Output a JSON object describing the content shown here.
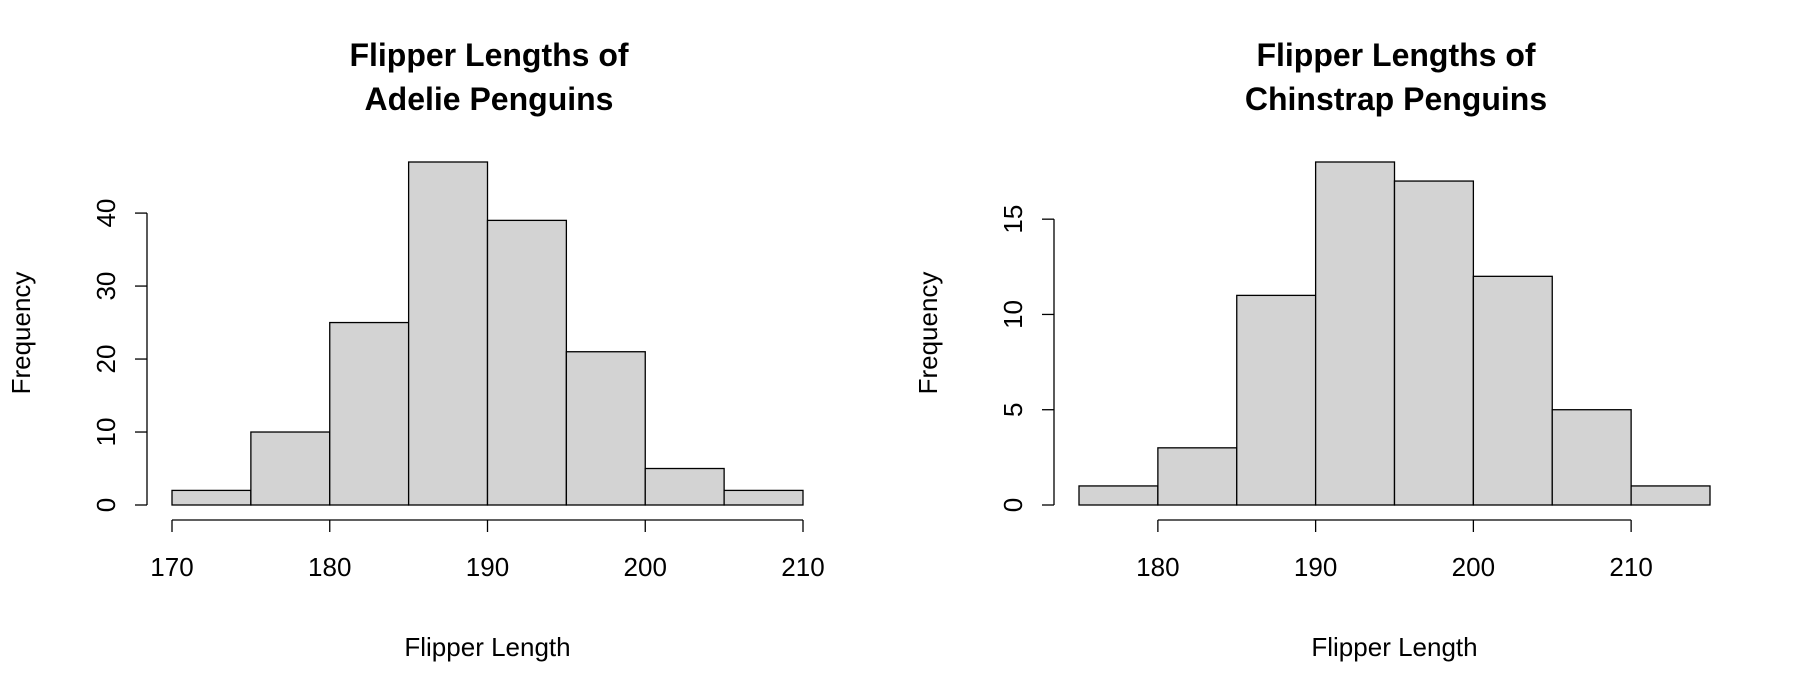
{
  "chart_data": [
    {
      "type": "bar",
      "title_lines": [
        "Flipper Lengths of",
        "Adelie Penguins"
      ],
      "xlabel": "Flipper Length",
      "ylabel": "Frequency",
      "breaks": [
        170,
        175,
        180,
        185,
        190,
        195,
        200,
        205,
        210
      ],
      "values": [
        2,
        10,
        25,
        47,
        39,
        21,
        5,
        2
      ],
      "xlim": [
        170,
        210
      ],
      "ylim": [
        0,
        47
      ],
      "xticks": [
        170,
        180,
        190,
        200,
        210
      ],
      "yticks": [
        0,
        10,
        20,
        30,
        40
      ],
      "grid": false,
      "bar_color": "#d3d3d3"
    },
    {
      "type": "bar",
      "title_lines": [
        "Flipper Lengths of",
        "Chinstrap Penguins"
      ],
      "xlabel": "Flipper Length",
      "ylabel": "Frequency",
      "breaks": [
        175,
        180,
        185,
        190,
        195,
        200,
        205,
        210,
        215
      ],
      "values": [
        1,
        3,
        11,
        18,
        17,
        12,
        5,
        1
      ],
      "xlim": [
        175,
        215
      ],
      "ylim": [
        0,
        18
      ],
      "xticks": [
        180,
        190,
        200,
        210
      ],
      "yticks": [
        0,
        5,
        10,
        15
      ],
      "grid": false,
      "bar_color": "#d3d3d3"
    }
  ]
}
